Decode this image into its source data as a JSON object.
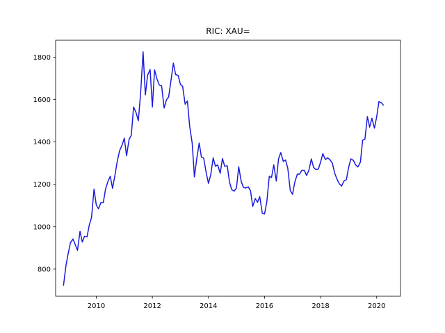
{
  "chart_data": {
    "type": "line",
    "title": "RIC: XAU=",
    "xlabel": "",
    "ylabel": "",
    "xlim": [
      2008.55,
      2020.85
    ],
    "ylim": [
      672,
      1880
    ],
    "x_ticks": [
      2010,
      2012,
      2014,
      2016,
      2018,
      2020
    ],
    "x_tick_labels": [
      "2010",
      "2012",
      "2014",
      "2016",
      "2018",
      "2020"
    ],
    "y_ticks": [
      800,
      1000,
      1200,
      1400,
      1600,
      1800
    ],
    "y_tick_labels": [
      "800",
      "1000",
      "1200",
      "1400",
      "1600",
      "1800"
    ],
    "grid": false,
    "line_color": "#1a1adb",
    "series": [
      {
        "x": [
          2008.83,
          2008.92,
          2009.0,
          2009.08,
          2009.17,
          2009.25,
          2009.33,
          2009.42,
          2009.5,
          2009.58,
          2009.67,
          2009.75,
          2009.83,
          2009.92,
          2010.0,
          2010.08,
          2010.17,
          2010.25,
          2010.33,
          2010.42,
          2010.5,
          2010.58,
          2010.67,
          2010.75,
          2010.83,
          2010.92,
          2011.0,
          2011.08,
          2011.17,
          2011.25,
          2011.33,
          2011.42,
          2011.5,
          2011.58,
          2011.67,
          2011.75,
          2011.83,
          2011.92,
          2012.0,
          2012.08,
          2012.17,
          2012.25,
          2012.33,
          2012.42,
          2012.5,
          2012.58,
          2012.67,
          2012.75,
          2012.83,
          2012.92,
          2013.0,
          2013.08,
          2013.17,
          2013.25,
          2013.33,
          2013.42,
          2013.5,
          2013.58,
          2013.67,
          2013.75,
          2013.83,
          2013.92,
          2014.0,
          2014.08,
          2014.17,
          2014.25,
          2014.33,
          2014.42,
          2014.5,
          2014.58,
          2014.67,
          2014.75,
          2014.83,
          2014.92,
          2015.0,
          2015.08,
          2015.17,
          2015.25,
          2015.33,
          2015.42,
          2015.5,
          2015.58,
          2015.67,
          2015.75,
          2015.83,
          2015.92,
          2016.0,
          2016.08,
          2016.17,
          2016.25,
          2016.33,
          2016.42,
          2016.5,
          2016.58,
          2016.67,
          2016.75,
          2016.83,
          2016.92,
          2017.0,
          2017.08,
          2017.17,
          2017.25,
          2017.33,
          2017.42,
          2017.5,
          2017.58,
          2017.67,
          2017.75,
          2017.83,
          2017.92,
          2018.0,
          2018.08,
          2018.17,
          2018.25,
          2018.33,
          2018.42,
          2018.5,
          2018.58,
          2018.67,
          2018.75,
          2018.83,
          2018.92,
          2019.0,
          2019.08,
          2019.17,
          2019.25,
          2019.33,
          2019.42,
          2019.5,
          2019.58,
          2019.67,
          2019.75,
          2019.83,
          2019.92,
          2020.0,
          2020.08,
          2020.17,
          2020.25
        ],
        "values": [
          722,
          818,
          875,
          925,
          942,
          915,
          888,
          978,
          928,
          955,
          952,
          1008,
          1043,
          1178,
          1102,
          1085,
          1115,
          1113,
          1178,
          1215,
          1238,
          1181,
          1246,
          1310,
          1358,
          1385,
          1418,
          1335,
          1412,
          1432,
          1565,
          1538,
          1500,
          1628,
          1825,
          1622,
          1715,
          1742,
          1565,
          1740,
          1695,
          1668,
          1665,
          1560,
          1598,
          1612,
          1695,
          1772,
          1718,
          1714,
          1672,
          1662,
          1578,
          1594,
          1475,
          1395,
          1235,
          1318,
          1395,
          1328,
          1324,
          1255,
          1205,
          1244,
          1325,
          1285,
          1292,
          1252,
          1322,
          1285,
          1288,
          1212,
          1175,
          1168,
          1183,
          1283,
          1213,
          1185,
          1183,
          1188,
          1170,
          1096,
          1133,
          1115,
          1142,
          1064,
          1060,
          1115,
          1238,
          1232,
          1292,
          1216,
          1320,
          1350,
          1308,
          1315,
          1276,
          1170,
          1153,
          1210,
          1248,
          1248,
          1266,
          1266,
          1242,
          1265,
          1320,
          1280,
          1270,
          1272,
          1305,
          1345,
          1317,
          1325,
          1317,
          1300,
          1254,
          1226,
          1202,
          1192,
          1215,
          1222,
          1280,
          1320,
          1313,
          1292,
          1282,
          1305,
          1408,
          1413,
          1520,
          1470,
          1512,
          1465,
          1518,
          1590,
          1585,
          1572
        ]
      }
    ]
  }
}
